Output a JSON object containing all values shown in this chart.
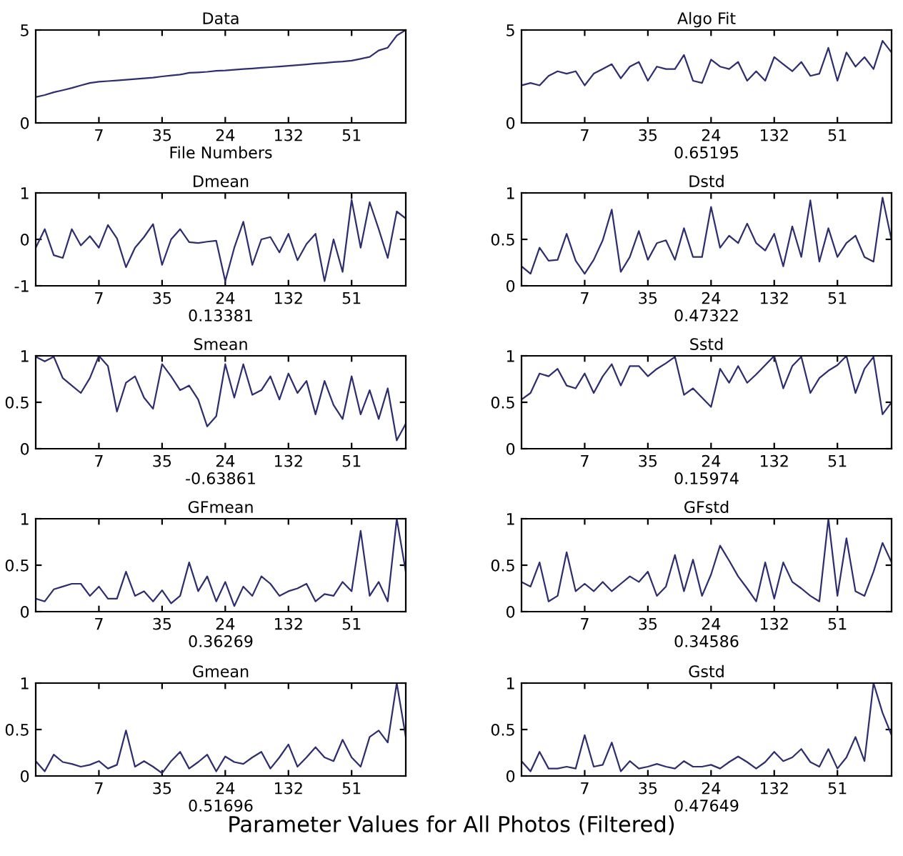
{
  "chart_data": [
    {
      "type": "line",
      "title": "Data",
      "xlabel": "File Numbers",
      "annotations": [
        "Parameter Values for All Photos (Filtered)"
      ],
      "color": "#2e2e6e",
      "ylim": [
        0,
        5
      ],
      "yticks": [
        0,
        5
      ],
      "categories": [
        null,
        null,
        null,
        null,
        null,
        null,
        null,
        "7",
        null,
        null,
        null,
        null,
        null,
        null,
        "35",
        null,
        null,
        null,
        null,
        null,
        null,
        "24",
        null,
        null,
        null,
        null,
        null,
        null,
        "132",
        null,
        null,
        null,
        null,
        null,
        null,
        "51",
        null,
        null,
        null,
        null,
        null,
        null
      ],
      "values": [
        1.39,
        1.5,
        1.65,
        1.76,
        1.88,
        2.02,
        2.15,
        2.22,
        2.25,
        2.28,
        2.32,
        2.36,
        2.4,
        2.44,
        2.5,
        2.55,
        2.6,
        2.7,
        2.72,
        2.75,
        2.8,
        2.82,
        2.86,
        2.9,
        2.93,
        2.97,
        3.0,
        3.03,
        3.07,
        3.11,
        3.15,
        3.2,
        3.23,
        3.27,
        3.3,
        3.35,
        3.45,
        3.55,
        3.9,
        4.05,
        4.7,
        5.0
      ]
    },
    {
      "type": "line",
      "title": "Algo Fit",
      "xlabel": "0.65195",
      "color": "#2e2e6e",
      "ylim": [
        0,
        5
      ],
      "yticks": [
        0,
        5
      ],
      "categories": [
        null,
        null,
        null,
        null,
        null,
        null,
        null,
        "7",
        null,
        null,
        null,
        null,
        null,
        null,
        "35",
        null,
        null,
        null,
        null,
        null,
        null,
        "24",
        null,
        null,
        null,
        null,
        null,
        null,
        "132",
        null,
        null,
        null,
        null,
        null,
        null,
        "51",
        null,
        null,
        null,
        null,
        null,
        null
      ],
      "values": [
        2.02,
        2.15,
        2.02,
        2.53,
        2.78,
        2.65,
        2.78,
        2.02,
        2.65,
        2.9,
        3.16,
        2.4,
        3.03,
        3.28,
        2.27,
        3.03,
        2.9,
        2.9,
        3.66,
        2.27,
        2.15,
        3.41,
        3.03,
        2.9,
        3.28,
        2.27,
        2.78,
        2.27,
        3.54,
        3.16,
        2.78,
        3.28,
        2.53,
        2.65,
        4.04,
        2.27,
        3.79,
        3.03,
        3.54,
        2.9,
        4.42,
        3.79
      ]
    },
    {
      "type": "line",
      "title": "Dmean",
      "xlabel": "0.13381",
      "color": "#2e2e6e",
      "ylim": [
        -1,
        1
      ],
      "yticks": [
        -1,
        0,
        1
      ],
      "categories": [
        null,
        null,
        null,
        null,
        null,
        null,
        null,
        "7",
        null,
        null,
        null,
        null,
        null,
        null,
        "35",
        null,
        null,
        null,
        null,
        null,
        null,
        "24",
        null,
        null,
        null,
        null,
        null,
        null,
        "132",
        null,
        null,
        null,
        null,
        null,
        null,
        "51",
        null,
        null,
        null,
        null,
        null,
        null
      ],
      "values": [
        -0.18,
        0.22,
        -0.34,
        -0.4,
        0.22,
        -0.13,
        0.07,
        -0.18,
        0.31,
        0.02,
        -0.6,
        -0.18,
        0.05,
        0.33,
        -0.55,
        0,
        0.22,
        -0.06,
        -0.08,
        -0.05,
        -0.03,
        -0.9,
        -0.18,
        0.38,
        -0.55,
        0,
        0.05,
        -0.28,
        0.12,
        -0.45,
        -0.1,
        0.12,
        -0.9,
        0,
        -0.7,
        0.85,
        -0.18,
        0.8,
        0.22,
        -0.4,
        0.6,
        0.45
      ]
    },
    {
      "type": "line",
      "title": "Dstd",
      "xlabel": "0.47322",
      "color": "#2e2e6e",
      "ylim": [
        0,
        1
      ],
      "yticks": [
        0,
        0.5,
        1
      ],
      "categories": [
        null,
        null,
        null,
        null,
        null,
        null,
        null,
        "7",
        null,
        null,
        null,
        null,
        null,
        null,
        "35",
        null,
        null,
        null,
        null,
        null,
        null,
        "24",
        null,
        null,
        null,
        null,
        null,
        null,
        "132",
        null,
        null,
        null,
        null,
        null,
        null,
        "51",
        null,
        null,
        null,
        null,
        null,
        null
      ],
      "values": [
        0.21,
        0.13,
        0.41,
        0.27,
        0.28,
        0.56,
        0.27,
        0.13,
        0.28,
        0.49,
        0.82,
        0.15,
        0.31,
        0.59,
        0.28,
        0.46,
        0.49,
        0.28,
        0.62,
        0.31,
        0.31,
        0.85,
        0.41,
        0.54,
        0.46,
        0.67,
        0.46,
        0.38,
        0.56,
        0.21,
        0.64,
        0.31,
        0.92,
        0.26,
        0.62,
        0.31,
        0.46,
        0.54,
        0.31,
        0.26,
        0.95,
        0.49
      ]
    },
    {
      "type": "line",
      "title": "Smean",
      "xlabel": "-0.63861",
      "color": "#2e2e6e",
      "ylim": [
        0,
        1
      ],
      "yticks": [
        0,
        0.5,
        1
      ],
      "categories": [
        null,
        null,
        null,
        null,
        null,
        null,
        null,
        "7",
        null,
        null,
        null,
        null,
        null,
        null,
        "35",
        null,
        null,
        null,
        null,
        null,
        null,
        "24",
        null,
        null,
        null,
        null,
        null,
        null,
        "132",
        null,
        null,
        null,
        null,
        null,
        null,
        "51",
        null,
        null,
        null,
        null,
        null,
        null
      ],
      "values": [
        0.99,
        0.94,
        0.99,
        0.76,
        0.68,
        0.6,
        0.76,
        1.0,
        0.89,
        0.4,
        0.71,
        0.78,
        0.55,
        0.43,
        0.91,
        0.78,
        0.63,
        0.68,
        0.53,
        0.24,
        0.35,
        0.91,
        0.55,
        0.91,
        0.58,
        0.63,
        0.78,
        0.53,
        0.81,
        0.6,
        0.73,
        0.37,
        0.73,
        0.47,
        0.32,
        0.78,
        0.37,
        0.63,
        0.32,
        0.65,
        0.09,
        0.27
      ]
    },
    {
      "type": "line",
      "title": "Sstd",
      "xlabel": "0.15974",
      "color": "#2e2e6e",
      "ylim": [
        0,
        1
      ],
      "yticks": [
        0,
        0.5,
        1
      ],
      "categories": [
        null,
        null,
        null,
        null,
        null,
        null,
        null,
        "7",
        null,
        null,
        null,
        null,
        null,
        null,
        "35",
        null,
        null,
        null,
        null,
        null,
        null,
        "24",
        null,
        null,
        null,
        null,
        null,
        null,
        "132",
        null,
        null,
        null,
        null,
        null,
        null,
        "51",
        null,
        null,
        null,
        null,
        null,
        null
      ],
      "values": [
        0.53,
        0.6,
        0.81,
        0.78,
        0.86,
        0.68,
        0.65,
        0.81,
        0.6,
        0.78,
        0.91,
        0.68,
        0.89,
        0.89,
        0.78,
        0.86,
        0.92,
        0.99,
        0.58,
        0.65,
        0.55,
        0.45,
        0.86,
        0.71,
        0.89,
        0.71,
        0.8,
        0.9,
        1.0,
        0.65,
        0.89,
        0.99,
        0.6,
        0.76,
        0.84,
        0.9,
        1.0,
        0.6,
        0.86,
        0.99,
        0.37,
        0.5
      ]
    },
    {
      "type": "line",
      "title": "GFmean",
      "xlabel": "0.36269",
      "color": "#2e2e6e",
      "ylim": [
        0,
        1
      ],
      "yticks": [
        0,
        0.5,
        1
      ],
      "categories": [
        null,
        null,
        null,
        null,
        null,
        null,
        null,
        "7",
        null,
        null,
        null,
        null,
        null,
        null,
        "35",
        null,
        null,
        null,
        null,
        null,
        null,
        "24",
        null,
        null,
        null,
        null,
        null,
        null,
        "132",
        null,
        null,
        null,
        null,
        null,
        null,
        "51",
        null,
        null,
        null,
        null,
        null,
        null
      ],
      "values": [
        0.14,
        0.11,
        0.24,
        0.27,
        0.3,
        0.3,
        0.17,
        0.27,
        0.14,
        0.14,
        0.43,
        0.17,
        0.22,
        0.11,
        0.23,
        0.09,
        0.17,
        0.53,
        0.22,
        0.38,
        0.11,
        0.32,
        0.06,
        0.27,
        0.17,
        0.38,
        0.3,
        0.17,
        0.22,
        0.25,
        0.3,
        0.11,
        0.19,
        0.17,
        0.32,
        0.22,
        0.87,
        0.17,
        0.32,
        0.11,
        1.0,
        0.43
      ]
    },
    {
      "type": "line",
      "title": "GFstd",
      "xlabel": "0.34586",
      "color": "#2e2e6e",
      "ylim": [
        0,
        1
      ],
      "yticks": [
        0,
        0.5,
        1
      ],
      "categories": [
        null,
        null,
        null,
        null,
        null,
        null,
        null,
        "7",
        null,
        null,
        null,
        null,
        null,
        null,
        "35",
        null,
        null,
        null,
        null,
        null,
        null,
        "24",
        null,
        null,
        null,
        null,
        null,
        null,
        "132",
        null,
        null,
        null,
        null,
        null,
        null,
        "51",
        null,
        null,
        null,
        null,
        null,
        null
      ],
      "values": [
        0.32,
        0.27,
        0.53,
        0.11,
        0.17,
        0.64,
        0.22,
        0.3,
        0.22,
        0.32,
        0.22,
        0.3,
        0.38,
        0.32,
        0.43,
        0.17,
        0.27,
        0.61,
        0.22,
        0.56,
        0.17,
        0.4,
        0.71,
        0.55,
        0.38,
        0.25,
        0.11,
        0.53,
        0.14,
        0.53,
        0.32,
        0.25,
        0.17,
        0.11,
        1.0,
        0.17,
        0.79,
        0.22,
        0.17,
        0.43,
        0.74,
        0.53
      ]
    },
    {
      "type": "line",
      "title": "Gmean",
      "xlabel": "0.51696",
      "color": "#2e2e6e",
      "ylim": [
        0,
        1
      ],
      "yticks": [
        0,
        0.5,
        1
      ],
      "categories": [
        null,
        null,
        null,
        null,
        null,
        null,
        null,
        "7",
        null,
        null,
        null,
        null,
        null,
        null,
        "35",
        null,
        null,
        null,
        null,
        null,
        null,
        "24",
        null,
        null,
        null,
        null,
        null,
        null,
        "132",
        null,
        null,
        null,
        null,
        null,
        null,
        "51",
        null,
        null,
        null,
        null,
        null,
        null
      ],
      "values": [
        0.16,
        0.05,
        0.23,
        0.15,
        0.13,
        0.1,
        0.12,
        0.16,
        0.08,
        0.12,
        0.49,
        0.1,
        0.16,
        0.1,
        0.03,
        0.16,
        0.26,
        0.08,
        0.15,
        0.23,
        0.05,
        0.21,
        0.15,
        0.13,
        0.2,
        0.26,
        0.08,
        0.2,
        0.34,
        0.1,
        0.2,
        0.31,
        0.2,
        0.16,
        0.39,
        0.2,
        0.1,
        0.42,
        0.49,
        0.36,
        1.0,
        0.42
      ]
    },
    {
      "type": "line",
      "title": "Gstd",
      "xlabel": "0.47649",
      "color": "#2e2e6e",
      "ylim": [
        0,
        1
      ],
      "yticks": [
        0,
        0.5,
        1
      ],
      "categories": [
        null,
        null,
        null,
        null,
        null,
        null,
        null,
        "7",
        null,
        null,
        null,
        null,
        null,
        null,
        "35",
        null,
        null,
        null,
        null,
        null,
        null,
        "24",
        null,
        null,
        null,
        null,
        null,
        null,
        "132",
        null,
        null,
        null,
        null,
        null,
        null,
        "51",
        null,
        null,
        null,
        null,
        null,
        null
      ],
      "values": [
        0.16,
        0.05,
        0.26,
        0.08,
        0.08,
        0.1,
        0.08,
        0.44,
        0.1,
        0.12,
        0.36,
        0.05,
        0.16,
        0.08,
        0.1,
        0.13,
        0.1,
        0.08,
        0.16,
        0.1,
        0.1,
        0.12,
        0.08,
        0.15,
        0.21,
        0.15,
        0.08,
        0.15,
        0.26,
        0.16,
        0.2,
        0.29,
        0.15,
        0.1,
        0.29,
        0.08,
        0.2,
        0.42,
        0.16,
        1.0,
        0.68,
        0.44
      ]
    }
  ]
}
